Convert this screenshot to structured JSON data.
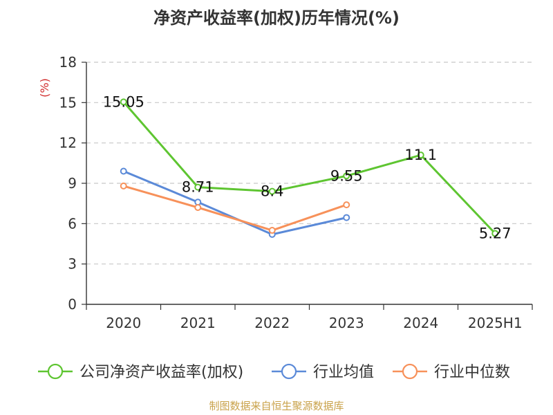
{
  "colors": {
    "company": "#5ec531",
    "industry_avg": "#5b8ad8",
    "industry_median": "#f7915a",
    "source": "#c9a24a",
    "unit": "#d12b2b"
  },
  "chart_data": {
    "type": "line",
    "title": "净资产收益率(加权)历年情况(%)",
    "ylabel": "(%)",
    "categories": [
      "2020",
      "2021",
      "2022",
      "2023",
      "2024",
      "2025H1"
    ],
    "ylim": [
      0,
      18
    ],
    "yticks": [
      0,
      3,
      6,
      9,
      12,
      15,
      18
    ],
    "ytick_labels": [
      "0",
      "3",
      "6",
      "9",
      "12",
      "15",
      "18"
    ],
    "grid": "horizontal dashed",
    "legend_position": "bottom",
    "series": [
      {
        "name": "公司净资产收益率(加权)",
        "values": [
          15.05,
          8.71,
          8.4,
          9.55,
          11.1,
          5.27
        ],
        "labels": [
          "15.05",
          "8.71",
          "8.4",
          "9.55",
          "11.1",
          "5.27"
        ]
      },
      {
        "name": "行业均值",
        "values": [
          9.9,
          7.6,
          5.2,
          6.45,
          null,
          null
        ]
      },
      {
        "name": "行业中位数",
        "values": [
          8.8,
          7.2,
          5.5,
          7.4,
          null,
          null
        ]
      }
    ]
  },
  "source": "制图数据来自恒生聚源数据库"
}
